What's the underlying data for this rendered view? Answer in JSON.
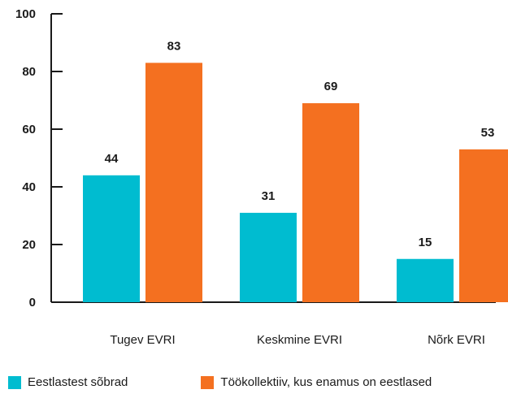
{
  "colors": {
    "series1": "#00BCD0",
    "series2": "#F47020",
    "axis": "#1a1a1a"
  },
  "chart_data": {
    "type": "bar",
    "categories": [
      "Tugev EVRI",
      "Keskmine EVRI",
      "Nõrk EVRI"
    ],
    "series": [
      {
        "name": "Eestlastest sõbrad",
        "values": [
          44,
          31,
          15
        ]
      },
      {
        "name": "Töökollektiiv, kus enamus on eestlased",
        "values": [
          83,
          69,
          53
        ]
      }
    ],
    "ylim": [
      0,
      100
    ],
    "yticks": [
      "0",
      "20",
      "40",
      "60",
      "80",
      "100"
    ],
    "grid": false,
    "legend_position": "bottom-left"
  }
}
